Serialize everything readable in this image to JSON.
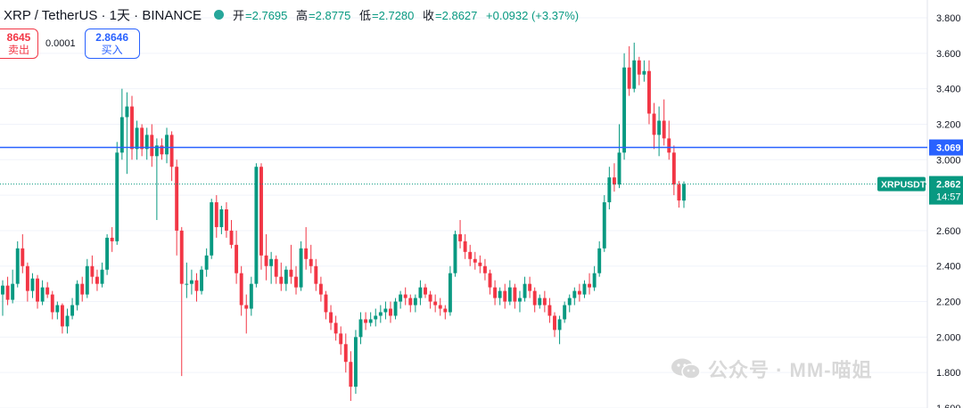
{
  "header": {
    "symbol": "XRP / TetherUS · 1天 · BINANCE",
    "status_color": "#26a69a",
    "ohlc": [
      {
        "label": "开",
        "value": "=2.7695"
      },
      {
        "label": "高",
        "value": "=2.8775"
      },
      {
        "label": "低",
        "value": "=2.7280"
      },
      {
        "label": "收",
        "value": "=2.8627"
      }
    ],
    "change": "+0.0932 (+3.37%)"
  },
  "trade": {
    "sell_price": "8645",
    "sell_label": "卖出",
    "spread": "0.0001",
    "buy_price": "2.8646",
    "buy_label": "买入"
  },
  "axis": {
    "labels": [
      "3.800",
      "3.600",
      "3.400",
      "3.200",
      "3.000",
      "2.800",
      "2.600",
      "2.400",
      "2.200",
      "2.000",
      "1.800",
      "1.600"
    ]
  },
  "price_tag": {
    "symbol": "XRPUSDT",
    "price": "2.862",
    "countdown": "14:57",
    "color": "#089981"
  },
  "level_line": {
    "price": 3.069,
    "label": "3.069",
    "color": "#2962ff"
  },
  "watermark": {
    "text": "公众号 · MM-喵姐",
    "icon": "wechat-icon"
  },
  "chart_data": {
    "type": "candlestick",
    "title": "XRP / TetherUS · 1天 · BINANCE",
    "ylim": [
      1.6,
      3.8
    ],
    "up_color": "#089981",
    "down_color": "#f23645",
    "ohlc_series": [
      [
        2.24,
        2.32,
        2.12,
        2.29
      ],
      [
        2.29,
        2.34,
        2.18,
        2.21
      ],
      [
        2.21,
        2.38,
        2.19,
        2.3
      ],
      [
        2.3,
        2.54,
        2.28,
        2.5
      ],
      [
        2.5,
        2.58,
        2.36,
        2.4
      ],
      [
        2.4,
        2.42,
        2.2,
        2.26
      ],
      [
        2.26,
        2.36,
        2.22,
        2.33
      ],
      [
        2.33,
        2.35,
        2.16,
        2.2
      ],
      [
        2.2,
        2.32,
        2.18,
        2.28
      ],
      [
        2.28,
        2.31,
        2.22,
        2.24
      ],
      [
        2.24,
        2.26,
        2.1,
        2.14
      ],
      [
        2.14,
        2.2,
        2.1,
        2.18
      ],
      [
        2.18,
        2.19,
        2.02,
        2.06
      ],
      [
        2.06,
        2.16,
        2.02,
        2.12
      ],
      [
        2.12,
        2.22,
        2.1,
        2.18
      ],
      [
        2.18,
        2.32,
        2.15,
        2.3
      ],
      [
        2.3,
        2.34,
        2.2,
        2.24
      ],
      [
        2.24,
        2.44,
        2.22,
        2.4
      ],
      [
        2.4,
        2.46,
        2.3,
        2.34
      ],
      [
        2.34,
        2.38,
        2.26,
        2.3
      ],
      [
        2.3,
        2.42,
        2.28,
        2.38
      ],
      [
        2.38,
        2.58,
        2.35,
        2.56
      ],
      [
        2.56,
        2.62,
        2.48,
        2.54
      ],
      [
        2.54,
        3.1,
        2.52,
        3.04
      ],
      [
        3.04,
        3.4,
        3.0,
        3.24
      ],
      [
        3.24,
        3.38,
        2.92,
        3.3
      ],
      [
        3.3,
        3.36,
        3.0,
        3.06
      ],
      [
        3.06,
        3.22,
        3.0,
        3.18
      ],
      [
        3.18,
        3.2,
        3.02,
        3.06
      ],
      [
        3.06,
        3.18,
        3.0,
        3.14
      ],
      [
        3.14,
        3.2,
        2.96,
        3.02
      ],
      [
        3.02,
        3.12,
        2.66,
        3.08
      ],
      [
        3.08,
        3.12,
        3.0,
        3.03
      ],
      [
        3.03,
        3.18,
        2.98,
        3.14
      ],
      [
        3.14,
        3.16,
        2.88,
        2.96
      ],
      [
        2.96,
        3.0,
        2.46,
        2.6
      ],
      [
        2.6,
        2.62,
        1.78,
        2.3
      ],
      [
        2.3,
        2.42,
        2.22,
        2.3
      ],
      [
        2.3,
        2.38,
        2.24,
        2.32
      ],
      [
        2.32,
        2.36,
        2.2,
        2.26
      ],
      [
        2.26,
        2.4,
        2.24,
        2.38
      ],
      [
        2.38,
        2.5,
        2.34,
        2.46
      ],
      [
        2.46,
        2.78,
        2.44,
        2.76
      ],
      [
        2.76,
        2.8,
        2.56,
        2.62
      ],
      [
        2.62,
        2.74,
        2.58,
        2.72
      ],
      [
        2.72,
        2.76,
        2.56,
        2.6
      ],
      [
        2.6,
        2.66,
        2.5,
        2.52
      ],
      [
        2.52,
        2.6,
        2.3,
        2.36
      ],
      [
        2.36,
        2.4,
        2.12,
        2.18
      ],
      [
        2.18,
        2.24,
        2.02,
        2.16
      ],
      [
        2.16,
        2.34,
        2.12,
        2.3
      ],
      [
        2.3,
        2.98,
        2.28,
        2.96
      ],
      [
        2.96,
        2.98,
        2.38,
        2.46
      ],
      [
        2.46,
        2.58,
        2.32,
        2.4
      ],
      [
        2.4,
        2.48,
        2.3,
        2.44
      ],
      [
        2.44,
        2.46,
        2.3,
        2.34
      ],
      [
        2.34,
        2.42,
        2.26,
        2.3
      ],
      [
        2.3,
        2.4,
        2.26,
        2.38
      ],
      [
        2.38,
        2.52,
        2.3,
        2.34
      ],
      [
        2.34,
        2.4,
        2.24,
        2.28
      ],
      [
        2.28,
        2.54,
        2.26,
        2.5
      ],
      [
        2.5,
        2.62,
        2.38,
        2.44
      ],
      [
        2.44,
        2.52,
        2.36,
        2.4
      ],
      [
        2.4,
        2.44,
        2.26,
        2.3
      ],
      [
        2.3,
        2.34,
        2.2,
        2.24
      ],
      [
        2.24,
        2.26,
        2.1,
        2.14
      ],
      [
        2.14,
        2.18,
        2.04,
        2.08
      ],
      [
        2.08,
        2.12,
        1.98,
        2.02
      ],
      [
        2.02,
        2.06,
        1.9,
        1.96
      ],
      [
        1.96,
        2.02,
        1.8,
        1.86
      ],
      [
        1.86,
        1.92,
        1.64,
        1.72
      ],
      [
        1.72,
        2.04,
        1.68,
        2.0
      ],
      [
        2.0,
        2.14,
        1.96,
        2.1
      ],
      [
        2.1,
        2.14,
        2.04,
        2.08
      ],
      [
        2.08,
        2.14,
        2.06,
        2.1
      ],
      [
        2.1,
        2.16,
        2.06,
        2.12
      ],
      [
        2.12,
        2.18,
        2.08,
        2.14
      ],
      [
        2.14,
        2.2,
        2.1,
        2.16
      ],
      [
        2.16,
        2.2,
        2.08,
        2.12
      ],
      [
        2.12,
        2.22,
        2.1,
        2.2
      ],
      [
        2.2,
        2.26,
        2.16,
        2.24
      ],
      [
        2.24,
        2.28,
        2.18,
        2.22
      ],
      [
        2.22,
        2.24,
        2.14,
        2.18
      ],
      [
        2.18,
        2.24,
        2.14,
        2.22
      ],
      [
        2.22,
        2.32,
        2.18,
        2.28
      ],
      [
        2.28,
        2.3,
        2.22,
        2.24
      ],
      [
        2.24,
        2.26,
        2.16,
        2.2
      ],
      [
        2.2,
        2.24,
        2.14,
        2.18
      ],
      [
        2.18,
        2.22,
        2.12,
        2.16
      ],
      [
        2.16,
        2.18,
        2.1,
        2.14
      ],
      [
        2.14,
        2.4,
        2.12,
        2.36
      ],
      [
        2.36,
        2.6,
        2.34,
        2.58
      ],
      [
        2.58,
        2.66,
        2.5,
        2.54
      ],
      [
        2.54,
        2.58,
        2.44,
        2.48
      ],
      [
        2.48,
        2.52,
        2.4,
        2.44
      ],
      [
        2.44,
        2.48,
        2.38,
        2.42
      ],
      [
        2.42,
        2.46,
        2.36,
        2.4
      ],
      [
        2.4,
        2.44,
        2.32,
        2.36
      ],
      [
        2.36,
        2.38,
        2.24,
        2.28
      ],
      [
        2.28,
        2.32,
        2.18,
        2.22
      ],
      [
        2.22,
        2.28,
        2.18,
        2.26
      ],
      [
        2.26,
        2.3,
        2.16,
        2.2
      ],
      [
        2.2,
        2.32,
        2.18,
        2.28
      ],
      [
        2.28,
        2.3,
        2.16,
        2.2
      ],
      [
        2.2,
        2.26,
        2.14,
        2.22
      ],
      [
        2.22,
        2.34,
        2.2,
        2.3
      ],
      [
        2.3,
        2.34,
        2.22,
        2.26
      ],
      [
        2.26,
        2.28,
        2.14,
        2.18
      ],
      [
        2.18,
        2.24,
        2.16,
        2.22
      ],
      [
        2.22,
        2.26,
        2.14,
        2.18
      ],
      [
        2.18,
        2.22,
        2.08,
        2.12
      ],
      [
        2.12,
        2.14,
        2.0,
        2.04
      ],
      [
        2.04,
        2.12,
        1.96,
        2.1
      ],
      [
        2.1,
        2.2,
        2.08,
        2.18
      ],
      [
        2.18,
        2.24,
        2.14,
        2.22
      ],
      [
        2.22,
        2.28,
        2.18,
        2.26
      ],
      [
        2.26,
        2.3,
        2.2,
        2.24
      ],
      [
        2.24,
        2.32,
        2.22,
        2.3
      ],
      [
        2.3,
        2.36,
        2.24,
        2.28
      ],
      [
        2.28,
        2.4,
        2.26,
        2.36
      ],
      [
        2.36,
        2.54,
        2.34,
        2.5
      ],
      [
        2.5,
        2.8,
        2.48,
        2.76
      ],
      [
        2.76,
        2.96,
        2.72,
        2.9
      ],
      [
        2.9,
        2.98,
        2.82,
        2.86
      ],
      [
        2.86,
        3.2,
        2.84,
        3.04
      ],
      [
        3.04,
        3.6,
        3.0,
        3.52
      ],
      [
        3.52,
        3.64,
        3.36,
        3.4
      ],
      [
        3.4,
        3.66,
        3.38,
        3.56
      ],
      [
        3.56,
        3.58,
        3.42,
        3.48
      ],
      [
        3.48,
        3.56,
        3.44,
        3.5
      ],
      [
        3.5,
        3.56,
        3.2,
        3.26
      ],
      [
        3.26,
        3.32,
        3.06,
        3.14
      ],
      [
        3.14,
        3.3,
        3.02,
        3.22
      ],
      [
        3.22,
        3.34,
        3.08,
        3.12
      ],
      [
        3.12,
        3.22,
        3.0,
        3.04
      ],
      [
        3.04,
        3.08,
        2.8,
        2.86
      ],
      [
        2.86,
        2.88,
        2.73,
        2.77
      ],
      [
        2.7695,
        2.8775,
        2.728,
        2.8627
      ]
    ]
  }
}
